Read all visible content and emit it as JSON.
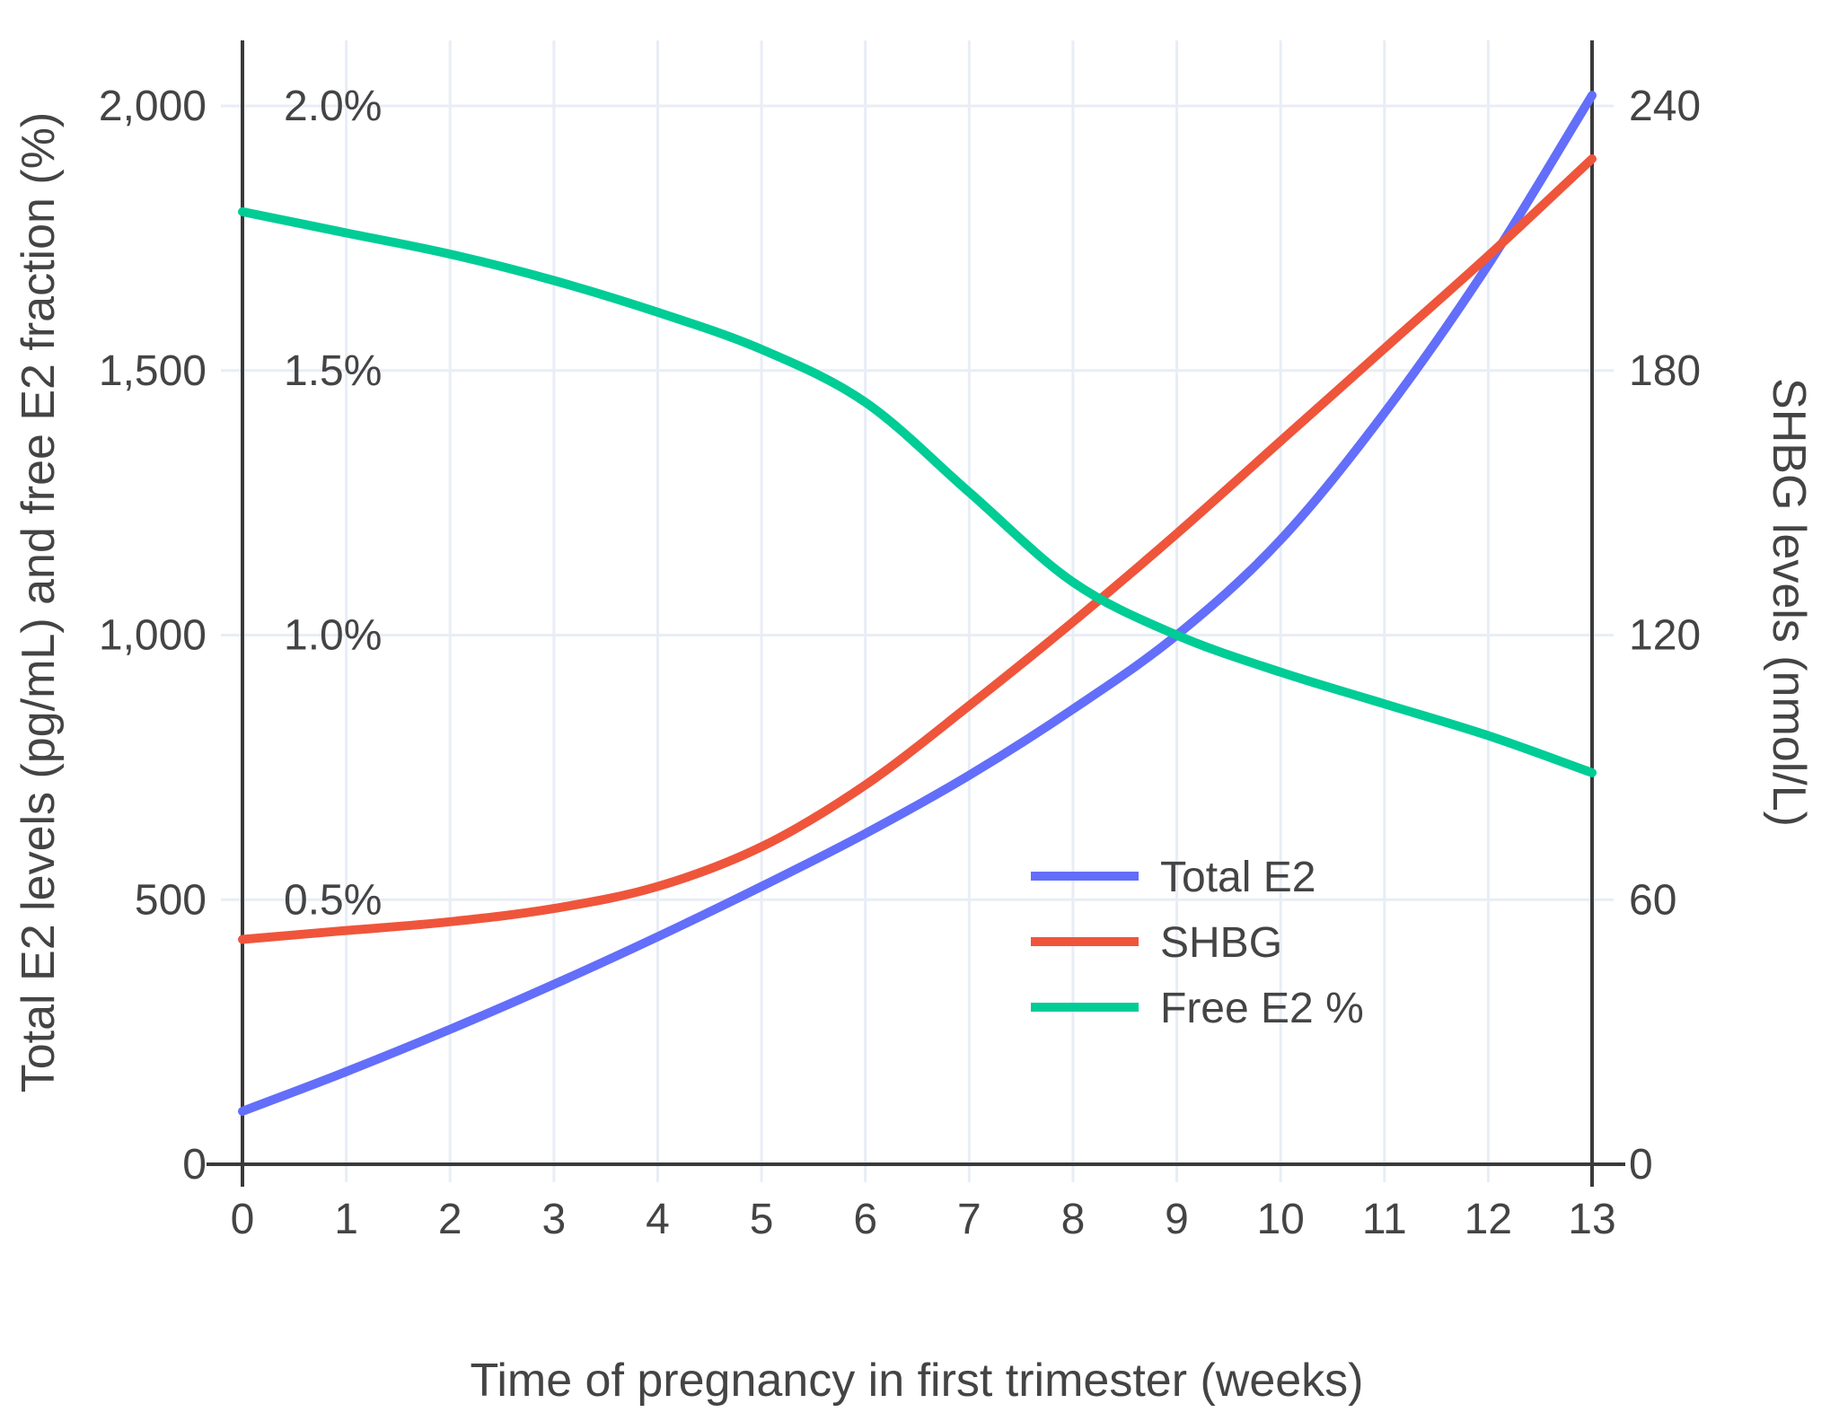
{
  "styles": {
    "background": "#FFFFFF",
    "grid_color": "#E8EDF6",
    "axis_line_color": "#3A3A3A",
    "text_color": "#444444"
  },
  "chart_data": {
    "type": "line",
    "title": "",
    "x_label": "Time of pregnancy in first trimester (weeks)",
    "x": [
      0,
      1,
      2,
      3,
      4,
      5,
      6,
      7,
      8,
      9,
      10,
      11,
      12,
      13
    ],
    "x_tick_labels": [
      "0",
      "1",
      "2",
      "3",
      "4",
      "5",
      "6",
      "7",
      "8",
      "9",
      "10",
      "11",
      "12",
      "13"
    ],
    "grid": true,
    "legend_position": "inside-right-middle",
    "left_axis": {
      "label": "Total E2 levels (pg/mL) and free E2 fraction (%)",
      "tick_values": [
        0,
        500,
        1000,
        1500,
        2000
      ],
      "tick_labels": [
        "0",
        "500",
        "1,000",
        "1,500",
        "2,000"
      ],
      "percent_tick_values": [
        0.5,
        1.0,
        1.5,
        2.0
      ],
      "percent_tick_labels": [
        "0.5%",
        "1.0%",
        "1.5%",
        "2.0%"
      ],
      "range": [
        0,
        2120
      ],
      "percent_to_left_units": 1000
    },
    "right_axis": {
      "label": "SHBG levels (nmol/L)",
      "tick_values": [
        0,
        60,
        120,
        180,
        240
      ],
      "tick_labels": [
        "0",
        "60",
        "120",
        "180",
        "240"
      ],
      "range": [
        0,
        254
      ]
    },
    "series": [
      {
        "name": "Total E2",
        "axis": "left",
        "unit": "pg/mL",
        "color": "#636EFA",
        "values": [
          100,
          175,
          255,
          340,
          430,
          525,
          625,
          735,
          860,
          1000,
          1180,
          1420,
          1700,
          2020
        ]
      },
      {
        "name": "SHBG",
        "axis": "right",
        "unit": "nmol/L",
        "color": "#EF553B",
        "values": [
          51,
          53,
          55,
          58,
          63,
          72,
          86,
          104,
          123,
          143,
          164,
          185,
          206,
          228
        ]
      },
      {
        "name": "Free E2 %",
        "axis": "left-percent",
        "unit": "%",
        "color": "#00CC96",
        "values": [
          1.8,
          1.76,
          1.72,
          1.67,
          1.61,
          1.54,
          1.44,
          1.27,
          1.1,
          1.0,
          0.93,
          0.87,
          0.81,
          0.74
        ]
      }
    ],
    "legend_entries": [
      "Total E2",
      "SHBG",
      "Free E2 %"
    ]
  }
}
